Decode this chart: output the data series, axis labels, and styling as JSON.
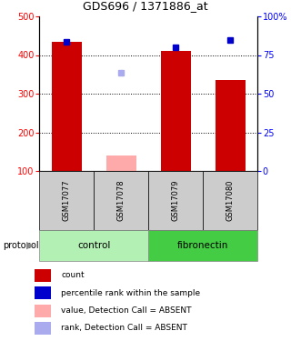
{
  "title": "GDS696 / 1371886_at",
  "samples": [
    "GSM17077",
    "GSM17078",
    "GSM17079",
    "GSM17080"
  ],
  "bar_values": [
    435,
    140,
    410,
    335
  ],
  "bar_colors": [
    "#cc0000",
    "#ffaaaa",
    "#cc0000",
    "#cc0000"
  ],
  "rank_values": [
    435,
    355,
    420,
    440
  ],
  "rank_colors": [
    "#0000cc",
    "#aaaaee",
    "#0000cc",
    "#0000cc"
  ],
  "absent_flags": [
    false,
    true,
    false,
    false
  ],
  "ylim_left": [
    100,
    500
  ],
  "ylim_right": [
    0,
    100
  ],
  "yticks_left": [
    100,
    200,
    300,
    400,
    500
  ],
  "yticks_right": [
    0,
    25,
    50,
    75,
    100
  ],
  "ytick_labels_right": [
    "0",
    "25",
    "50",
    "75",
    "100%"
  ],
  "groups": [
    {
      "label": "control",
      "indices": [
        0,
        1
      ],
      "color": "#b3f0b3"
    },
    {
      "label": "fibronectin",
      "indices": [
        2,
        3
      ],
      "color": "#44cc44"
    }
  ],
  "protocol_label": "protocol",
  "legend_items": [
    {
      "label": "count",
      "color": "#cc0000"
    },
    {
      "label": "percentile rank within the sample",
      "color": "#0000cc"
    },
    {
      "label": "value, Detection Call = ABSENT",
      "color": "#ffaaaa"
    },
    {
      "label": "rank, Detection Call = ABSENT",
      "color": "#aaaaee"
    }
  ],
  "bar_bottom": 100,
  "sample_bg_color": "#cccccc",
  "fig_width": 3.2,
  "fig_height": 3.75,
  "dpi": 100
}
